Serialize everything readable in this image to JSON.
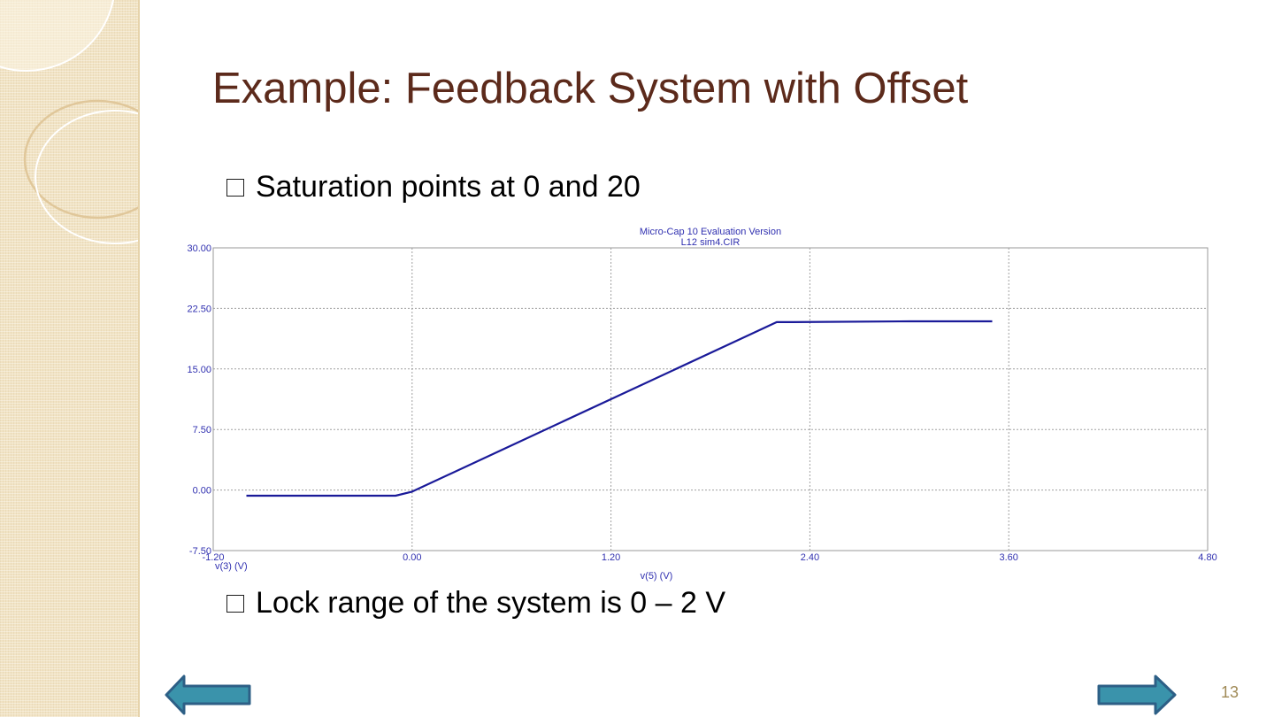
{
  "slide": {
    "title": "Example: Feedback System with Offset",
    "bullets": [
      "Saturation points at 0 and 20",
      "Lock range of the system is 0 – 2 V"
    ],
    "page_number": "13",
    "colors": {
      "title": "#5c2a1b",
      "sidebar": "#f1e3c4",
      "nav_arrow": "#3a93ab",
      "nav_arrow_border": "#2d5f86",
      "page_number": "#a08a56"
    },
    "icons": {
      "bullet": "square-bullet-icon",
      "prev": "arrow-left-icon",
      "next": "arrow-right-icon"
    }
  },
  "chart_data": {
    "type": "line",
    "title": "Micro-Cap 10 Evaluation Version",
    "subtitle": "L12 sim4.CIR",
    "xlabel": "v(5) (V)",
    "ylabel": "v(3) (V)",
    "x_ticks": [
      "-1.20",
      "0.00",
      "1.20",
      "2.40",
      "3.60",
      "4.80"
    ],
    "x_tick_values": [
      -1.2,
      0.0,
      1.2,
      2.4,
      3.6,
      4.8
    ],
    "y_ticks": [
      "30.00",
      "22.50",
      "15.00",
      "7.50",
      "0.00",
      "-7.50"
    ],
    "y_tick_values": [
      30.0,
      22.5,
      15.0,
      7.5,
      0.0,
      -7.5
    ],
    "xlim": [
      -1.2,
      4.8
    ],
    "ylim": [
      -7.5,
      30.0
    ],
    "grid": true,
    "line_color": "#1a1a99",
    "series": [
      {
        "x": [
          -1.0,
          -0.1,
          0.0,
          2.2,
          2.3,
          3.0,
          3.5
        ],
        "y": [
          -0.7,
          -0.7,
          -0.2,
          20.8,
          20.8,
          20.9,
          20.9
        ]
      }
    ]
  }
}
